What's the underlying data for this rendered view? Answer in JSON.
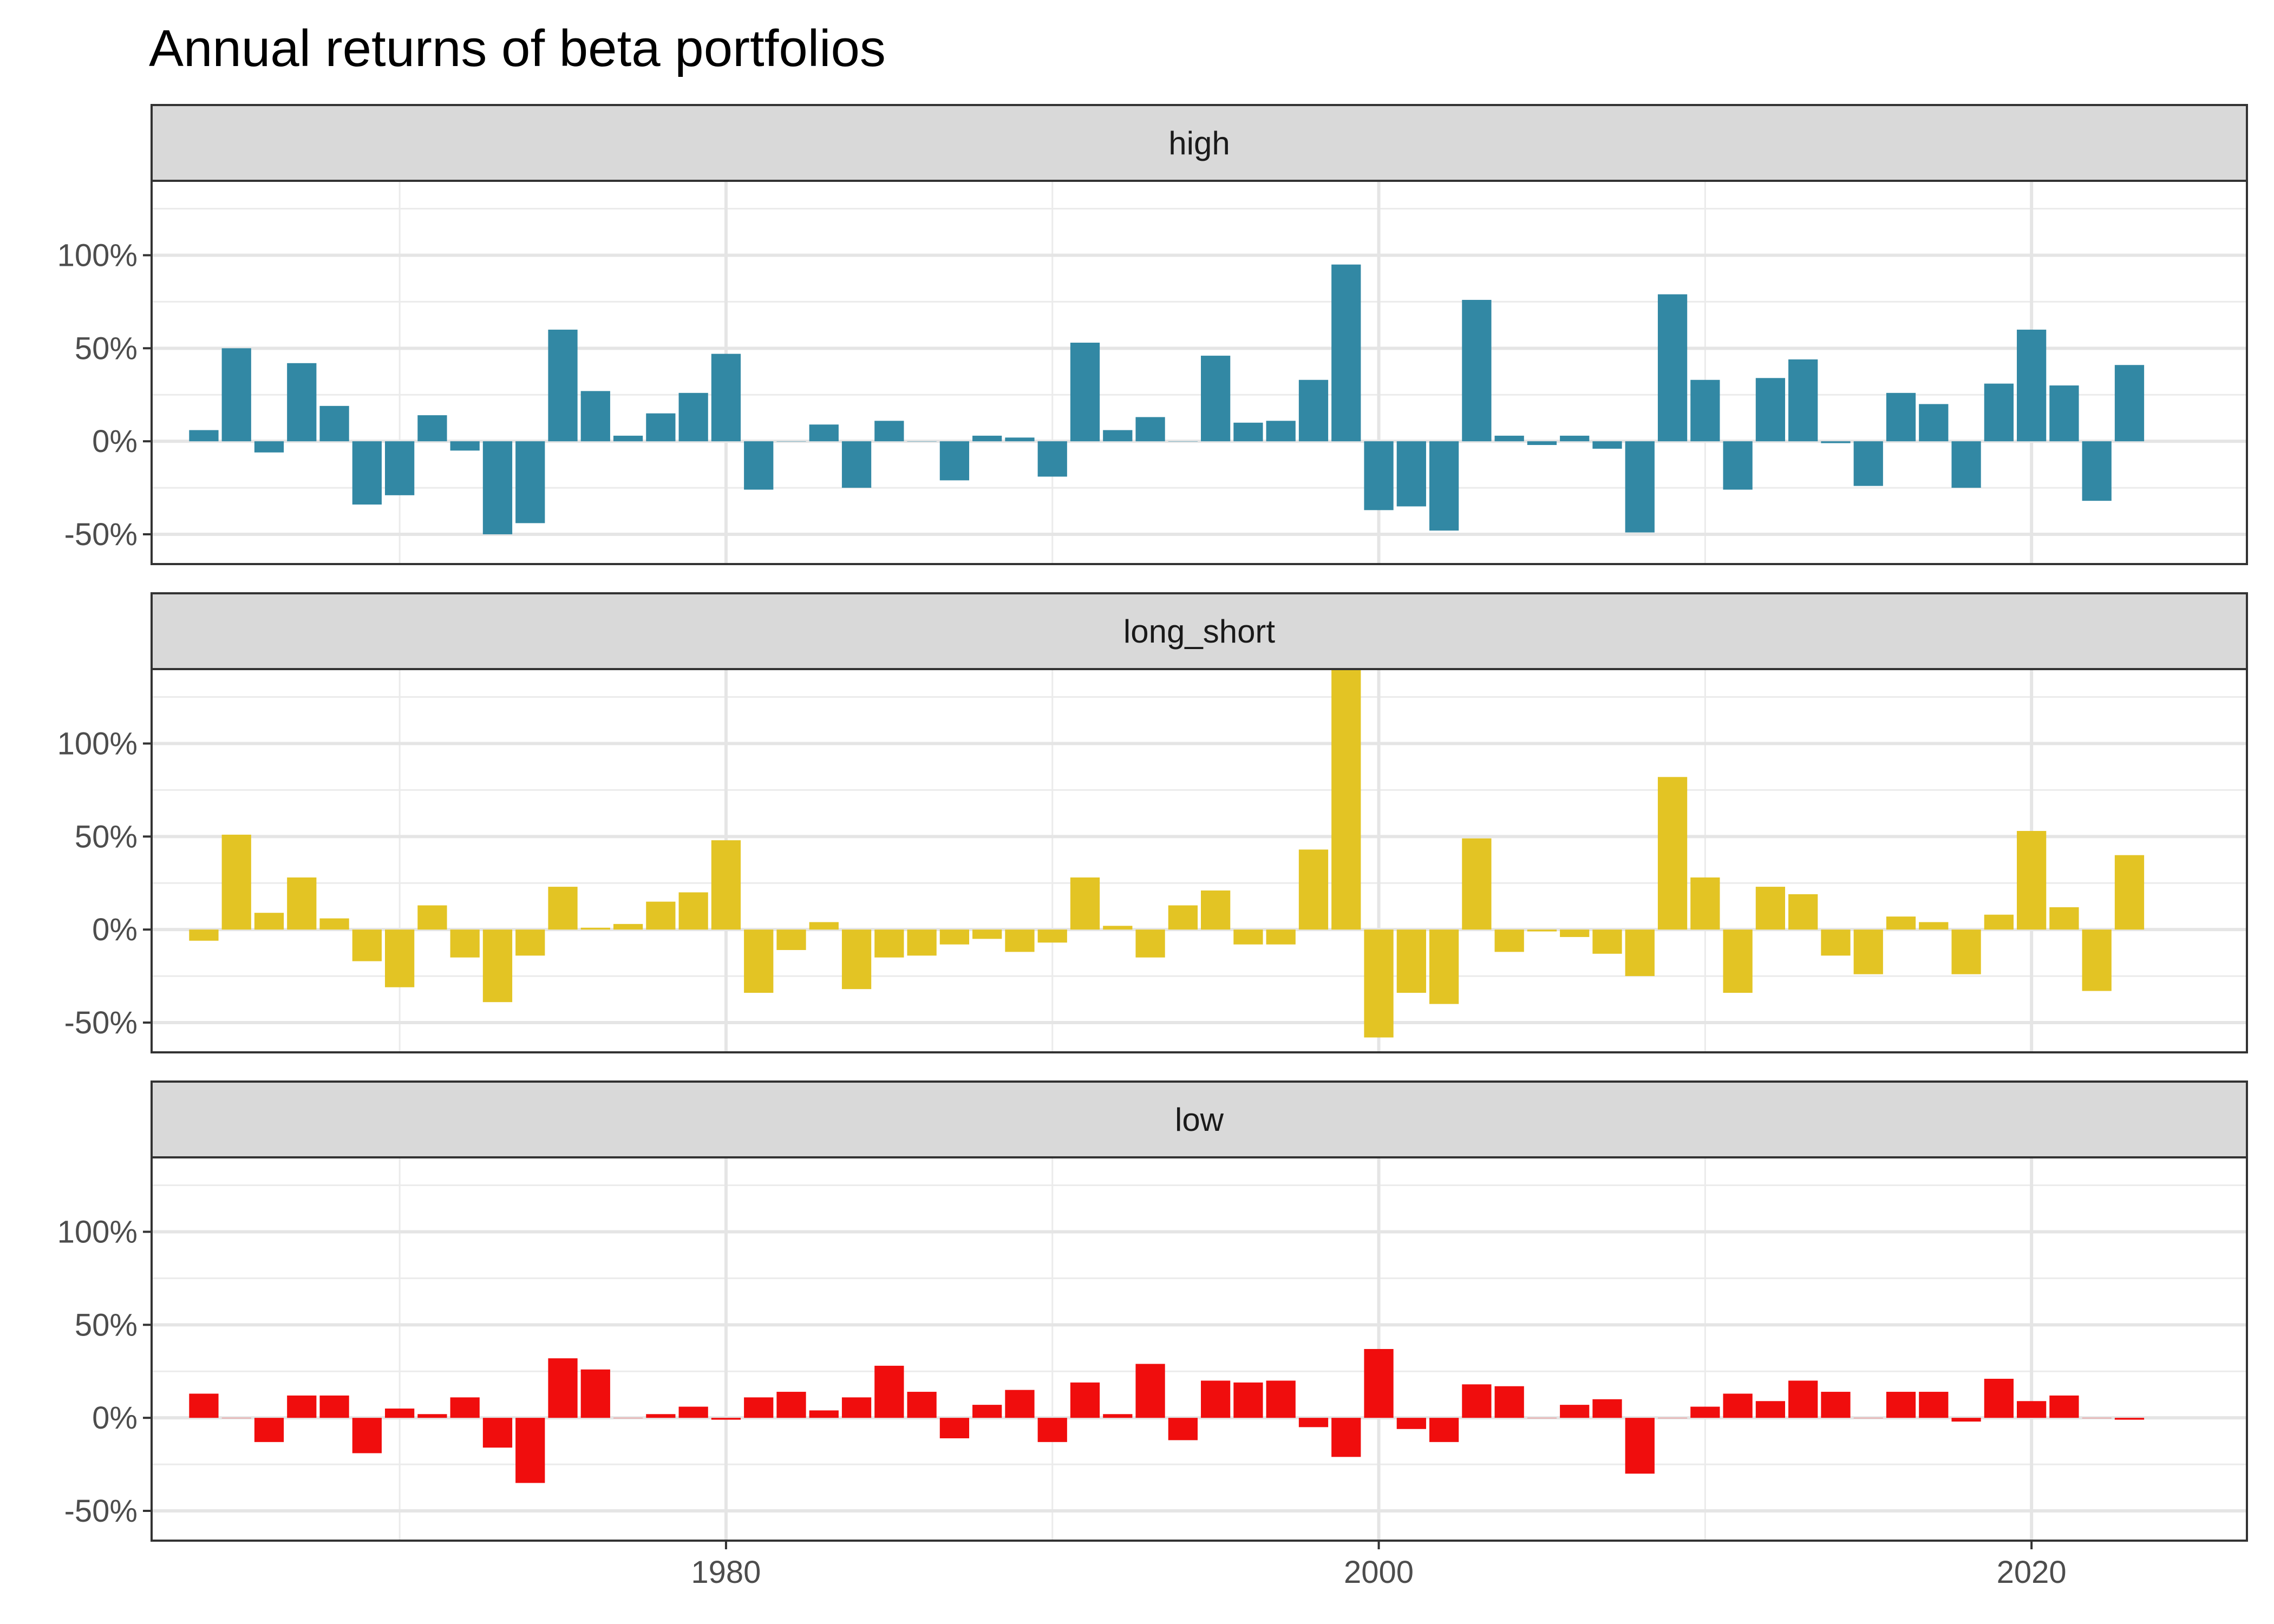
{
  "chart_data": {
    "type": "bar",
    "title": "Annual returns of beta portfolios",
    "xlabel": "",
    "ylabel": "",
    "xlim": [
      1962.4,
      2026.6
    ],
    "ylim": [
      -0.66,
      1.4
    ],
    "x_ticks": [
      1980,
      2000,
      2020
    ],
    "x_tick_labels": [
      "1980",
      "2000",
      "2020"
    ],
    "y_ticks": [
      -0.5,
      0,
      0.5,
      1
    ],
    "y_tick_labels": [
      "-50%",
      "0%",
      "50%",
      "100%"
    ],
    "grid": true,
    "legend": "none",
    "x": [
      1964,
      1965,
      1966,
      1967,
      1968,
      1969,
      1970,
      1971,
      1972,
      1973,
      1974,
      1975,
      1976,
      1977,
      1978,
      1979,
      1980,
      1981,
      1982,
      1983,
      1984,
      1985,
      1986,
      1987,
      1988,
      1989,
      1990,
      1991,
      1992,
      1993,
      1994,
      1995,
      1996,
      1997,
      1998,
      1999,
      2000,
      2001,
      2002,
      2003,
      2004,
      2005,
      2006,
      2007,
      2008,
      2009,
      2010,
      2011,
      2012,
      2013,
      2014,
      2015,
      2016,
      2017,
      2018,
      2019,
      2020,
      2021,
      2022,
      2023
    ],
    "series": [
      {
        "name": "high",
        "color": "#3288a4",
        "values": [
          0.06,
          0.5,
          -0.06,
          0.42,
          0.19,
          -0.34,
          -0.29,
          0.14,
          -0.05,
          -0.5,
          -0.44,
          0.6,
          0.27,
          0.03,
          0.15,
          0.26,
          0.47,
          -0.26,
          0.0,
          0.09,
          -0.25,
          0.11,
          0.0,
          -0.21,
          0.03,
          0.02,
          -0.19,
          0.53,
          0.06,
          0.13,
          0.0,
          0.46,
          0.1,
          0.11,
          0.33,
          0.95,
          -0.37,
          -0.35,
          -0.48,
          0.76,
          0.03,
          -0.02,
          0.03,
          -0.04,
          -0.49,
          0.79,
          0.33,
          -0.26,
          0.34,
          0.44,
          -0.01,
          -0.24,
          0.26,
          0.2,
          -0.25,
          0.31,
          0.6,
          0.3,
          -0.32,
          0.41
        ]
      },
      {
        "name": "long_short",
        "color": "#e3c424",
        "values": [
          -0.06,
          0.51,
          0.09,
          0.28,
          0.06,
          -0.17,
          -0.31,
          0.13,
          -0.15,
          -0.39,
          -0.14,
          0.23,
          0.01,
          0.03,
          0.15,
          0.2,
          0.48,
          -0.34,
          -0.11,
          0.04,
          -0.32,
          -0.15,
          -0.14,
          -0.08,
          -0.05,
          -0.12,
          -0.07,
          0.28,
          0.02,
          -0.15,
          0.13,
          0.21,
          -0.08,
          -0.08,
          0.43,
          1.4,
          -0.58,
          -0.34,
          -0.4,
          0.49,
          -0.12,
          -0.01,
          -0.04,
          -0.13,
          -0.25,
          0.82,
          0.28,
          -0.34,
          0.23,
          0.19,
          -0.14,
          -0.24,
          0.07,
          0.04,
          -0.24,
          0.08,
          0.53,
          0.12,
          -0.33,
          0.4
        ]
      },
      {
        "name": "low",
        "color": "#f00d0d",
        "values": [
          0.13,
          0.0,
          -0.13,
          0.12,
          0.12,
          -0.19,
          0.05,
          0.02,
          0.11,
          -0.16,
          -0.35,
          0.32,
          0.26,
          0.0,
          0.02,
          0.06,
          -0.01,
          0.11,
          0.14,
          0.04,
          0.11,
          0.28,
          0.14,
          -0.11,
          0.07,
          0.15,
          -0.13,
          0.19,
          0.02,
          0.29,
          -0.12,
          0.2,
          0.19,
          0.2,
          -0.05,
          -0.21,
          0.37,
          -0.06,
          -0.13,
          0.18,
          0.17,
          0.0,
          0.07,
          0.1,
          -0.3,
          0.0,
          0.06,
          0.13,
          0.09,
          0.2,
          0.14,
          0.0,
          0.14,
          0.14,
          -0.02,
          0.21,
          0.09,
          0.12,
          0.0,
          -0.01
        ]
      }
    ]
  }
}
